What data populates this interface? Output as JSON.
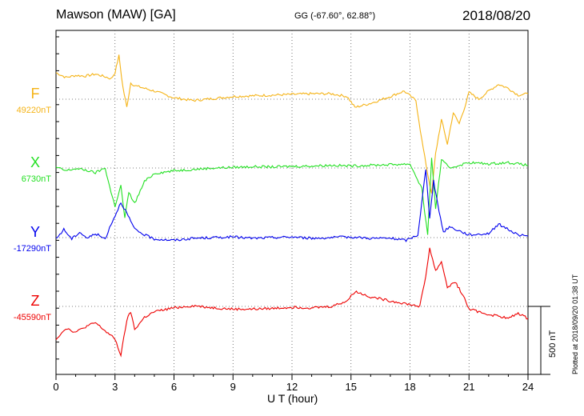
{
  "header": {
    "station": "Mawson (MAW)  [GA]",
    "coords": "GG (-67.60°,  62.88°)",
    "date": "2018/08/20"
  },
  "footer": {
    "xlabel": "U T (hour)",
    "plotted": "Plotted at 2018/09/20 01:38 UT",
    "scale": "500 nT"
  },
  "chart_data": {
    "type": "line",
    "x_unit": "hour (UT)",
    "xlim": [
      0,
      24
    ],
    "x_ticks": [
      0,
      3,
      6,
      9,
      12,
      15,
      18,
      21,
      24
    ],
    "scale_bar_nT": 500,
    "series": [
      {
        "name": "F",
        "baseline_label": "49220nT",
        "color": "#f5b316",
        "points": [
          [
            0,
            195
          ],
          [
            0.5,
            160
          ],
          [
            1,
            175
          ],
          [
            1.5,
            170
          ],
          [
            2,
            185
          ],
          [
            2.5,
            165
          ],
          [
            2.8,
            150
          ],
          [
            3.0,
            195
          ],
          [
            3.2,
            320
          ],
          [
            3.4,
            90
          ],
          [
            3.6,
            -60
          ],
          [
            3.8,
            120
          ],
          [
            4,
            100
          ],
          [
            5,
            60
          ],
          [
            6,
            10
          ],
          [
            7,
            -10
          ],
          [
            8,
            5
          ],
          [
            9,
            20
          ],
          [
            10,
            25
          ],
          [
            11,
            30
          ],
          [
            12,
            35
          ],
          [
            13,
            40
          ],
          [
            14,
            40
          ],
          [
            14.8,
            20
          ],
          [
            15.2,
            -60
          ],
          [
            16,
            -30
          ],
          [
            17,
            20
          ],
          [
            17.7,
            60
          ],
          [
            18.3,
            -10
          ],
          [
            18.6,
            -300
          ],
          [
            18.9,
            -550
          ],
          [
            19.1,
            -700
          ],
          [
            19.3,
            -400
          ],
          [
            19.6,
            -150
          ],
          [
            19.9,
            -330
          ],
          [
            20.2,
            -100
          ],
          [
            20.5,
            -180
          ],
          [
            20.8,
            -50
          ],
          [
            21,
            50
          ],
          [
            21.5,
            0
          ],
          [
            22,
            60
          ],
          [
            22.5,
            110
          ],
          [
            23,
            80
          ],
          [
            23.5,
            30
          ],
          [
            24,
            40
          ]
        ]
      },
      {
        "name": "X",
        "baseline_label": "6730nT",
        "color": "#22e022",
        "points": [
          [
            0,
            5
          ],
          [
            0.5,
            -20
          ],
          [
            1,
            -5
          ],
          [
            1.5,
            -15
          ],
          [
            2,
            -35
          ],
          [
            2.5,
            0
          ],
          [
            2.8,
            -180
          ],
          [
            3,
            -280
          ],
          [
            3.3,
            -130
          ],
          [
            3.5,
            -370
          ],
          [
            3.7,
            -180
          ],
          [
            4,
            -260
          ],
          [
            4.5,
            -100
          ],
          [
            5,
            -40
          ],
          [
            6,
            -20
          ],
          [
            7,
            -10
          ],
          [
            8,
            0
          ],
          [
            9,
            5
          ],
          [
            10,
            10
          ],
          [
            11,
            8
          ],
          [
            12,
            12
          ],
          [
            13,
            15
          ],
          [
            14,
            20
          ],
          [
            15,
            15
          ],
          [
            16,
            20
          ],
          [
            17,
            25
          ],
          [
            18,
            30
          ],
          [
            18.6,
            -150
          ],
          [
            18.9,
            -500
          ],
          [
            19.1,
            80
          ],
          [
            19.3,
            -300
          ],
          [
            19.6,
            60
          ],
          [
            20,
            0
          ],
          [
            21,
            40
          ],
          [
            22,
            30
          ],
          [
            23,
            40
          ],
          [
            24,
            20
          ]
        ]
      },
      {
        "name": "Y",
        "baseline_label": "-17290nT",
        "color": "#0000ee",
        "points": [
          [
            0,
            -10
          ],
          [
            0.4,
            60
          ],
          [
            0.8,
            -10
          ],
          [
            1.2,
            40
          ],
          [
            1.6,
            -5
          ],
          [
            2,
            30
          ],
          [
            2.5,
            -10
          ],
          [
            2.8,
            100
          ],
          [
            3.0,
            160
          ],
          [
            3.3,
            260
          ],
          [
            3.6,
            180
          ],
          [
            4,
            60
          ],
          [
            4.5,
            20
          ],
          [
            5,
            -10
          ],
          [
            6,
            -20
          ],
          [
            7,
            -5
          ],
          [
            8,
            0
          ],
          [
            9,
            5
          ],
          [
            10,
            -5
          ],
          [
            11,
            0
          ],
          [
            12,
            5
          ],
          [
            13,
            -5
          ],
          [
            14,
            0
          ],
          [
            15,
            5
          ],
          [
            16,
            -5
          ],
          [
            17,
            -5
          ],
          [
            17.8,
            -20
          ],
          [
            18.4,
            20
          ],
          [
            18.8,
            500
          ],
          [
            19.0,
            150
          ],
          [
            19.2,
            420
          ],
          [
            19.4,
            250
          ],
          [
            19.7,
            40
          ],
          [
            20,
            80
          ],
          [
            21,
            20
          ],
          [
            22,
            30
          ],
          [
            22.5,
            100
          ],
          [
            23,
            60
          ],
          [
            23.5,
            20
          ],
          [
            24,
            10
          ]
        ]
      },
      {
        "name": "Z",
        "baseline_label": "-45590nT",
        "color": "#ee0000",
        "points": [
          [
            0,
            -240
          ],
          [
            0.5,
            -160
          ],
          [
            1,
            -190
          ],
          [
            1.5,
            -150
          ],
          [
            2,
            -120
          ],
          [
            2.5,
            -180
          ],
          [
            3,
            -240
          ],
          [
            3.3,
            -360
          ],
          [
            3.6,
            -100
          ],
          [
            3.8,
            -40
          ],
          [
            4,
            -170
          ],
          [
            4.5,
            -80
          ],
          [
            5,
            -40
          ],
          [
            6,
            -10
          ],
          [
            7,
            5
          ],
          [
            8,
            -10
          ],
          [
            9,
            -20
          ],
          [
            10,
            -20
          ],
          [
            11,
            -15
          ],
          [
            12,
            -5
          ],
          [
            13,
            -10
          ],
          [
            14,
            0
          ],
          [
            14.8,
            40
          ],
          [
            15.2,
            110
          ],
          [
            16,
            70
          ],
          [
            17,
            40
          ],
          [
            17.8,
            20
          ],
          [
            18.5,
            0
          ],
          [
            18.8,
            220
          ],
          [
            19.0,
            430
          ],
          [
            19.3,
            260
          ],
          [
            19.6,
            330
          ],
          [
            19.9,
            140
          ],
          [
            20.3,
            180
          ],
          [
            20.7,
            80
          ],
          [
            21,
            -20
          ],
          [
            22,
            -60
          ],
          [
            22.5,
            -70
          ],
          [
            23,
            -90
          ],
          [
            23.5,
            -50
          ],
          [
            24,
            -90
          ]
        ]
      }
    ]
  }
}
